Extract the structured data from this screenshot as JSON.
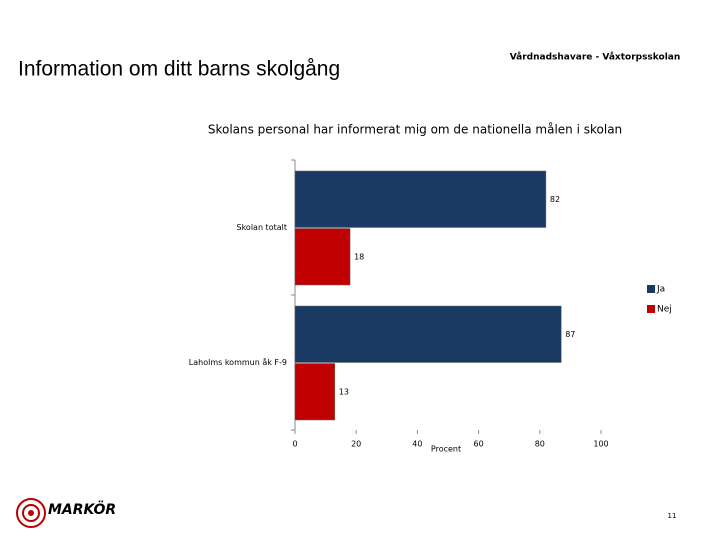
{
  "chart_data": {
    "type": "hbar",
    "title": "Skolans personal har informerat mig om de nationella målen i skolan",
    "x_label": "Procent",
    "categories": [
      "Skolan totalt",
      "Laholms kommun åk F-9"
    ],
    "series": [
      {
        "name": "Ja",
        "color": "#1b3a63",
        "values": [
          82,
          87
        ]
      },
      {
        "name": "Nej",
        "color": "#c00000",
        "values": [
          18,
          13
        ]
      }
    ],
    "xlim": [
      0,
      100
    ],
    "xticks": [
      0,
      20,
      40,
      60,
      80,
      100
    ],
    "grid": false,
    "legend": "right"
  },
  "header": {
    "title": "Information om ditt barns skolgång",
    "subtitle": "Vårdnadshavare - Våxtorpsskolan"
  },
  "footer": {
    "logo_text": "MARKÖR",
    "page_number": "11"
  }
}
